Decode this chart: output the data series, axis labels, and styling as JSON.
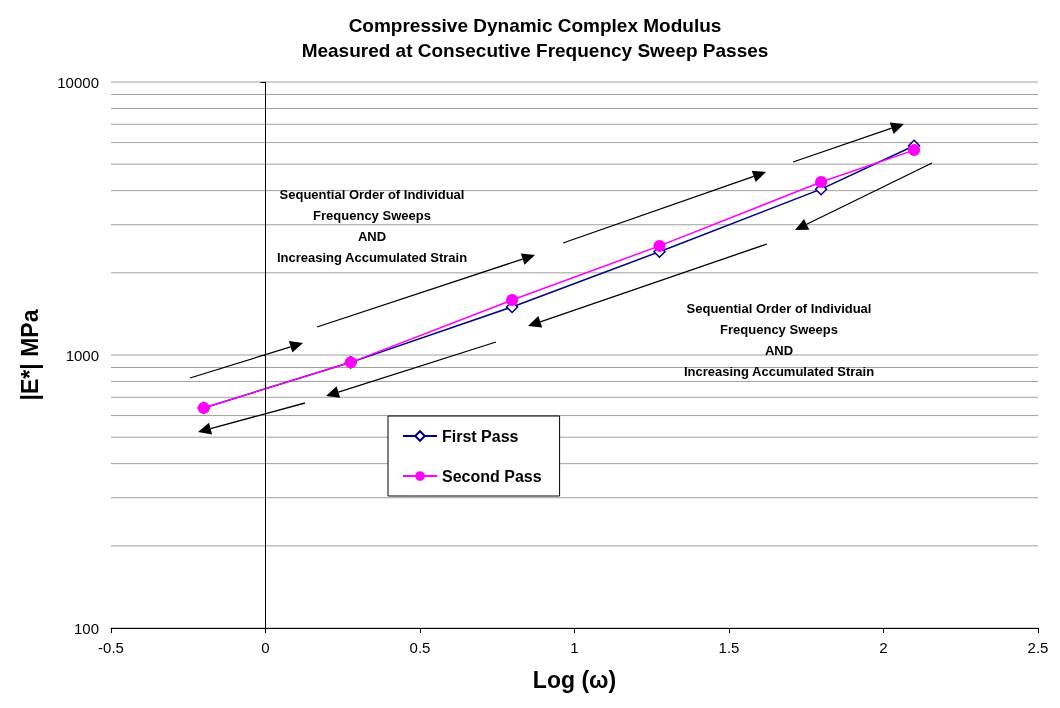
{
  "chart_data": {
    "type": "line",
    "title": "Compressive Dynamic Complex Modulus\nMeasured at Consecutive Frequency Sweep Passes",
    "xlabel": "Log (ω)",
    "ylabel": "|E*| MPa",
    "x": [
      -0.2,
      0.276,
      0.798,
      1.275,
      1.798,
      2.099
    ],
    "series": [
      {
        "name": "First Pass",
        "color": "#000080",
        "marker": "diamond",
        "values": [
          640,
          940,
          1500,
          2390,
          4050,
          5840
        ]
      },
      {
        "name": "Second Pass",
        "color": "#ff00ff",
        "marker": "circle",
        "values": [
          640,
          940,
          1590,
          2510,
          4300,
          5630
        ]
      }
    ],
    "xlim": [
      -0.5,
      2.5
    ],
    "xticks": [
      -0.5,
      0,
      0.5,
      1,
      1.5,
      2,
      2.5
    ],
    "ylim": [
      100,
      10000
    ],
    "yticks": [
      100,
      {
        "value": 200,
        "label": null
      },
      {
        "value": 300,
        "label": null
      },
      {
        "value": 400,
        "label": null
      },
      {
        "value": 500,
        "label": null
      },
      {
        "value": 600,
        "label": null
      },
      {
        "value": 700,
        "label": null
      },
      {
        "value": 800,
        "label": null
      },
      {
        "value": 900,
        "label": null
      },
      1000,
      {
        "value": 2000,
        "label": null
      },
      {
        "value": 3000,
        "label": null
      },
      {
        "value": 4000,
        "label": null
      },
      {
        "value": 5000,
        "label": null
      },
      {
        "value": 6000,
        "label": null
      },
      {
        "value": 7000,
        "label": null
      },
      {
        "value": 8000,
        "label": null
      },
      {
        "value": 9000,
        "label": null
      },
      10000
    ],
    "log": "y",
    "grid": "y",
    "legend": "center",
    "ref_lines": [
      {
        "axis": "x",
        "value": 0,
        "color": "#000000"
      }
    ],
    "annotations": [
      "Sequential Order of Individual\nFrequency Sweeps\nAND\nIncreasing Accumulated Strain",
      "Sequential Order of Individual\nFrequency Sweeps\nAND\nIncreasing Accumulated Strain"
    ]
  }
}
